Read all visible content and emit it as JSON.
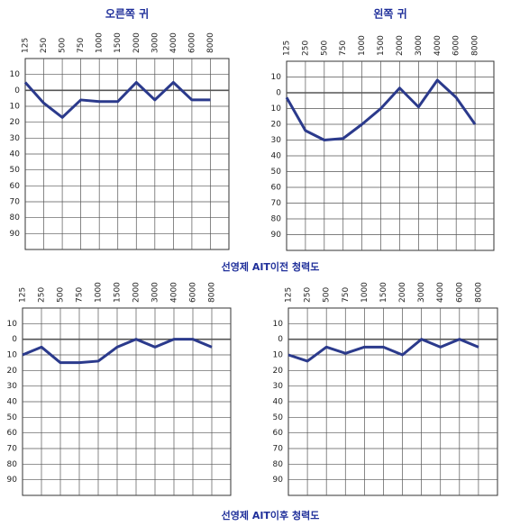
{
  "chart_data": [
    {
      "type": "line",
      "title": "오른쪽 귀",
      "categories": [
        "125",
        "250",
        "500",
        "750",
        "1000",
        "1500",
        "2000",
        "3000",
        "4000",
        "6000",
        "8000"
      ],
      "values": [
        -5,
        8,
        17,
        6,
        7,
        7,
        -5,
        6,
        -5,
        6,
        6
      ],
      "color": "#2b3a8c",
      "ylim": [
        -20,
        100
      ],
      "inverted": true,
      "yticks": [
        {
          "value": -10,
          "label": "10"
        },
        0,
        10,
        20,
        30,
        40,
        50,
        60,
        70,
        80,
        90
      ],
      "grid": true
    },
    {
      "type": "line",
      "title": "왼쪽 귀",
      "categories": [
        "125",
        "250",
        "500",
        "750",
        "1000",
        "1500",
        "2000",
        "3000",
        "4000",
        "6000",
        "8000"
      ],
      "values": [
        3,
        24,
        30,
        29,
        20,
        10,
        -3,
        9,
        -8,
        3,
        20
      ],
      "color": "#2b3a8c",
      "ylim": [
        -20,
        100
      ],
      "inverted": true,
      "yticks": [
        {
          "value": -10,
          "label": "10"
        },
        0,
        10,
        20,
        30,
        40,
        50,
        60,
        70,
        80,
        90
      ],
      "grid": true
    },
    {
      "type": "line",
      "categories": [
        "125",
        "250",
        "500",
        "750",
        "1000",
        "1500",
        "2000",
        "3000",
        "4000",
        "6000",
        "8000"
      ],
      "values": [
        10,
        5,
        15,
        15,
        14,
        5,
        0,
        5,
        0,
        0,
        5
      ],
      "color": "#2b3a8c",
      "ylim": [
        -20,
        100
      ],
      "inverted": true,
      "yticks": [
        {
          "value": -10,
          "label": "10"
        },
        0,
        10,
        20,
        30,
        40,
        50,
        60,
        70,
        80,
        90
      ],
      "grid": true
    },
    {
      "type": "line",
      "categories": [
        "125",
        "250",
        "500",
        "750",
        "1000",
        "1500",
        "2000",
        "3000",
        "4000",
        "6000",
        "8000"
      ],
      "values": [
        10,
        14,
        5,
        9,
        5,
        5,
        10,
        0,
        5,
        0,
        5
      ],
      "color": "#2b3a8c",
      "ylim": [
        -20,
        100
      ],
      "inverted": true,
      "yticks": [
        {
          "value": -10,
          "label": "10"
        },
        0,
        10,
        20,
        30,
        40,
        50,
        60,
        70,
        80,
        90
      ],
      "grid": true
    }
  ],
  "captions": [
    "선영제 AIT이전 청력도",
    "선영제 AIT이후 청력도"
  ]
}
